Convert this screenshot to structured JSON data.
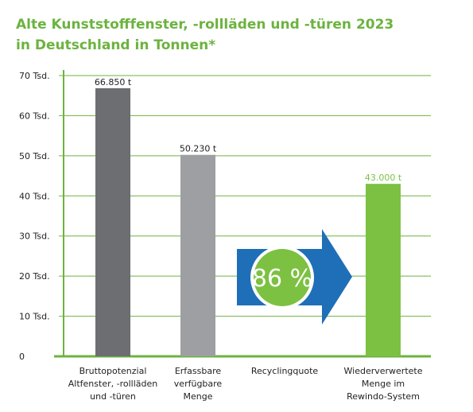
{
  "title_line1": "Alte Kunststofffenster, -rollläden und -türen 2023",
  "title_line2": "in Deutschland in Tonnen*",
  "colors": {
    "title": "#6cb33f",
    "grid": "#6cb33f",
    "axis": "#6cb33f",
    "bar_dark": "#6d6e71",
    "bar_gray": "#9d9fa2",
    "bar_green": "#7cc142",
    "arrow_blue": "#1f6fb8",
    "circle_green": "#7cc142"
  },
  "arrow_icon": "right-arrow-icon",
  "chart_data": {
    "type": "bar",
    "title": "Alte Kunststofffenster, -rollläden und -türen 2023 in Deutschland in Tonnen*",
    "categories": [
      [
        "Bruttopotenzial",
        "Altfenster, -rollläden",
        "und -türen"
      ],
      [
        "Erfassbare",
        "verfügbare",
        "Menge"
      ],
      [
        "Recyclingquote"
      ],
      [
        "Wiederverwertete",
        "Menge im",
        "Rewindo-System"
      ]
    ],
    "values": [
      66850,
      50230,
      null,
      43000
    ],
    "data_labels": [
      "66.850 t",
      "50.230 t",
      "",
      "43.000 t"
    ],
    "bar_colors": [
      "#6d6e71",
      "#9d9fa2",
      null,
      "#7cc142"
    ],
    "label_colors": [
      "#222222",
      "#222222",
      null,
      "#7cc142"
    ],
    "recycling_rate": 86,
    "recycling_rate_label": "86 %",
    "ylim": [
      0,
      70000
    ],
    "yticks": [
      0,
      10000,
      20000,
      30000,
      40000,
      50000,
      60000,
      70000
    ],
    "ytick_labels": [
      "0",
      "10 Tsd.",
      "20 Tsd.",
      "30 Tsd.",
      "40 Tsd.",
      "50 Tsd.",
      "60 Tsd.",
      "70 Tsd."
    ],
    "grid": true,
    "legend": "none",
    "xlabel": "",
    "ylabel": ""
  }
}
